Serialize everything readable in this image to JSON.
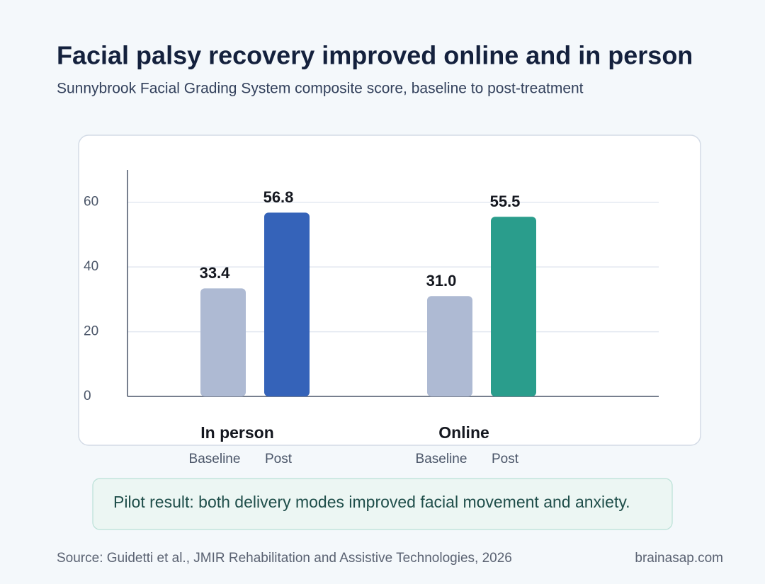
{
  "chart_data": {
    "type": "bar",
    "title": "Facial palsy recovery improved online and in person",
    "subtitle": "Sunnybrook Facial Grading System composite score, baseline to post-treatment",
    "categories": [
      "In person",
      "Online"
    ],
    "series": [
      {
        "name": "Baseline",
        "color": "#aebad3",
        "values": [
          33.4,
          31.0
        ],
        "value_labels": [
          "33.4",
          "31.0"
        ]
      },
      {
        "name": "Post",
        "colors": [
          "#3563b9",
          "#2a9d8c"
        ],
        "values": [
          56.8,
          55.5
        ]
      }
    ],
    "ylim": [
      0,
      70
    ],
    "yticks": [
      0,
      20,
      40,
      60
    ],
    "grid": true
  },
  "note": "Pilot result: both delivery modes improved facial movement and anxiety.",
  "source": "Source: Guidetti et al., JMIR Rehabilitation and Assistive Technologies, 2026",
  "brand": "brainasap.com"
}
